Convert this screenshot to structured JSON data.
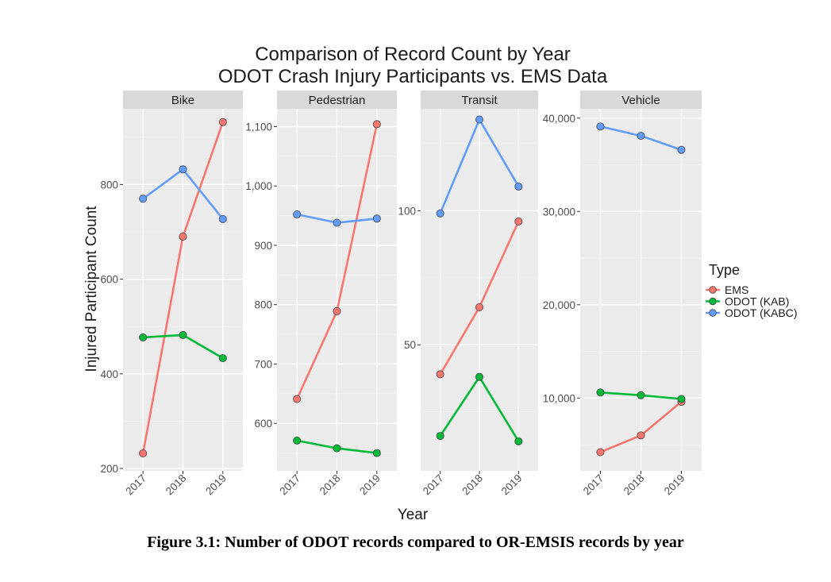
{
  "figure": {
    "title_line1": "Comparison of Record Count by Year",
    "title_line2": "ODOT Crash Injury Participants vs. EMS Data",
    "caption": "Figure 3.1: Number of ODOT records compared to OR-EMSIS records by year"
  },
  "chart_data": {
    "type": "line",
    "faceted": true,
    "xlabel": "Year",
    "ylabel": "Injured Participant Count",
    "x": [
      "2017",
      "2018",
      "2019"
    ],
    "legend": {
      "title": "Type",
      "placement": "right",
      "entries": [
        {
          "name": "EMS",
          "color": "#F8766D"
        },
        {
          "name": "ODOT (KAB)",
          "color": "#00BA38"
        },
        {
          "name": "ODOT (KABC)",
          "color": "#619CFF"
        }
      ]
    },
    "grid": true,
    "panels": [
      {
        "name": "Bike",
        "ylim": [
          195,
          960
        ],
        "yticks": [
          200,
          400,
          600,
          800
        ],
        "ytick_labels": [
          "200",
          "400",
          "600",
          "800"
        ],
        "series": [
          {
            "name": "EMS",
            "values": [
              232,
              690,
              932
            ]
          },
          {
            "name": "ODOT (KAB)",
            "values": [
              477,
              482,
              433
            ]
          },
          {
            "name": "ODOT (KABC)",
            "values": [
              770,
              832,
              727
            ]
          }
        ]
      },
      {
        "name": "Pedestrian",
        "ylim": [
          520,
          1130
        ],
        "yticks": [
          600,
          700,
          800,
          900,
          1000,
          1100
        ],
        "ytick_labels": [
          "600",
          "700",
          "800",
          "900",
          "1,000",
          "1,100"
        ],
        "series": [
          {
            "name": "EMS",
            "values": [
              641,
              789,
              1104
            ]
          },
          {
            "name": "ODOT (KAB)",
            "values": [
              571,
              558,
              550
            ]
          },
          {
            "name": "ODOT (KABC)",
            "values": [
              952,
              938,
              945
            ]
          }
        ]
      },
      {
        "name": "Transit",
        "ylim": [
          3,
          138
        ],
        "yticks": [
          50,
          100
        ],
        "ytick_labels": [
          "50",
          "100"
        ],
        "series": [
          {
            "name": "EMS",
            "values": [
              39,
              64,
              96
            ]
          },
          {
            "name": "ODOT (KAB)",
            "values": [
              16,
              38,
              14
            ]
          },
          {
            "name": "ODOT (KABC)",
            "values": [
              99,
              134,
              109
            ]
          }
        ]
      },
      {
        "name": "Vehicle",
        "ylim": [
          2200,
          41000
        ],
        "yticks": [
          10000,
          20000,
          30000,
          40000
        ],
        "ytick_labels": [
          "10,000",
          "20,000",
          "30,000",
          "40,000"
        ],
        "series": [
          {
            "name": "EMS",
            "values": [
              4200,
              6000,
              9600
            ]
          },
          {
            "name": "ODOT (KAB)",
            "values": [
              10600,
              10300,
              9900
            ]
          },
          {
            "name": "ODOT (KABC)",
            "values": [
              39100,
              38100,
              36600
            ]
          }
        ]
      }
    ]
  }
}
